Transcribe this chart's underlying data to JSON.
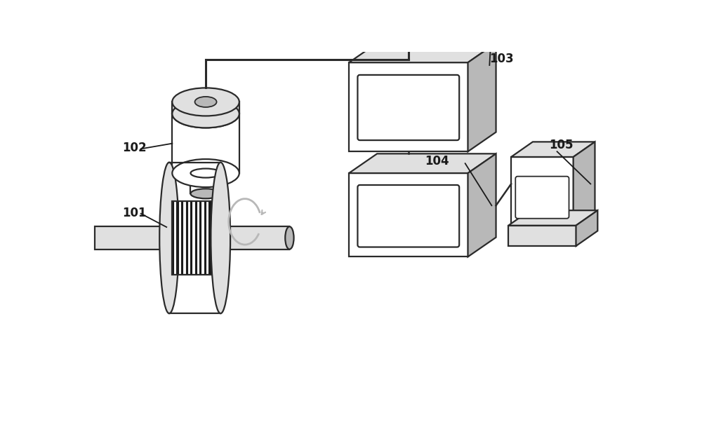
{
  "bg_color": "#ffffff",
  "line_color": "#2a2a2a",
  "fill_light": "#e0e0e0",
  "fill_medium": "#b8b8b8",
  "stripe_dark": "#1a1a1a",
  "stripe_light": "#f5f5f5",
  "label_color": "#1a1a1a",
  "label_fontsize": 12,
  "lw": 1.6
}
